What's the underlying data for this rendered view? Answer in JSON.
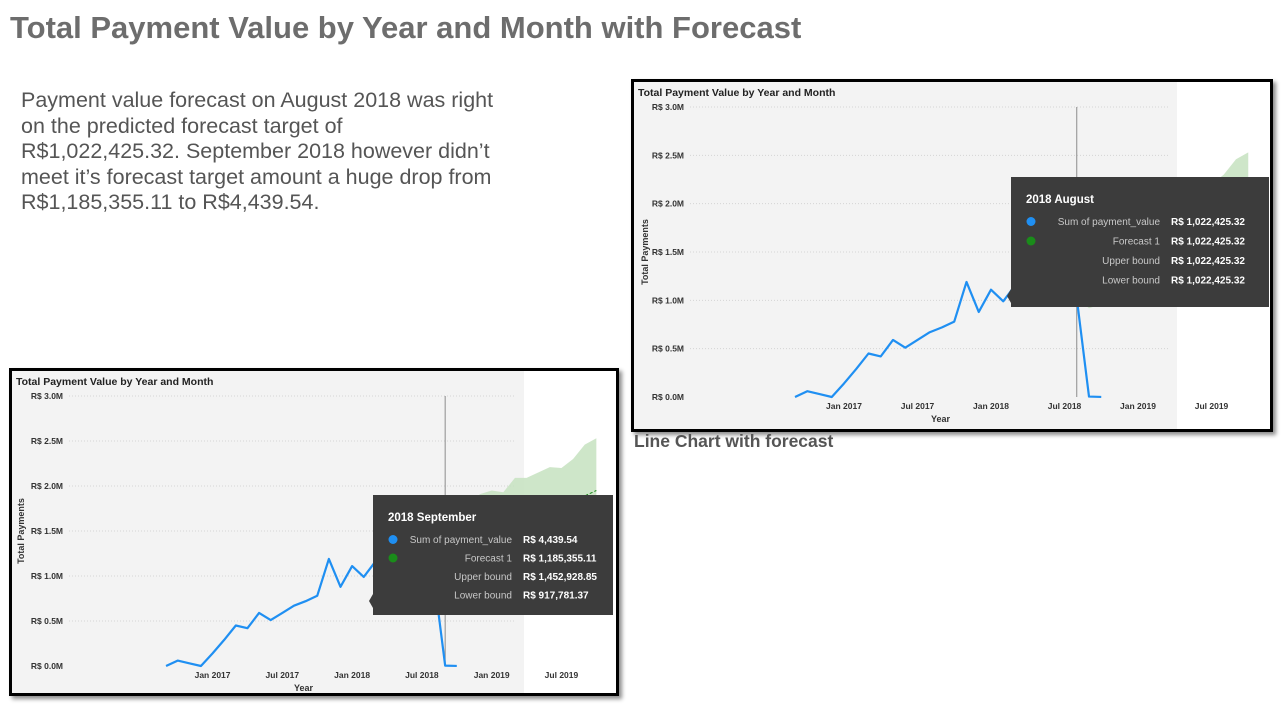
{
  "slide": {
    "title": "Total Payment Value by Year and Month with Forecast",
    "body_text": "Payment value forecast on August 2018 was right on the predicted forecast target of R$1,022,425.32. September 2018 however didn’t meet it’s forecast target amount a huge drop from R$1,185,355.11 to R$4,439.54.",
    "caption": "Line Chart with forecast"
  },
  "chart_data": [
    {
      "type": "line",
      "title": "Total Payment Value by Year and Month",
      "xlabel": "Year",
      "ylabel": "Total Payments",
      "x_tick_labels": [
        "Jan 2017",
        "Jul 2017",
        "Jan 2018",
        "Jul 2018",
        "Jan 2019",
        "Jul 2019"
      ],
      "y_tick_labels": [
        "R$ 0.0M",
        "R$ 0.5M",
        "R$ 1.0M",
        "R$ 1.5M",
        "R$ 2.0M",
        "R$ 2.5M",
        "R$ 3.0M"
      ],
      "ylim": [
        0,
        3000000
      ],
      "grid": true,
      "colors": {
        "actual": "#1f8ff2",
        "forecast": "#1a8c1a",
        "band": "#c6e2c0",
        "plot_bg": "#f3f3f3",
        "tooltip_bg": "#3c3c3c"
      },
      "series": [
        {
          "name": "Sum of payment_value",
          "x": [
            "2016-09",
            "2016-10",
            "2016-11",
            "2016-12",
            "2017-01",
            "2017-02",
            "2017-03",
            "2017-04",
            "2017-05",
            "2017-06",
            "2017-07",
            "2017-08",
            "2017-09",
            "2017-10",
            "2017-11",
            "2017-12",
            "2018-01",
            "2018-02",
            "2018-03",
            "2018-04",
            "2018-05",
            "2018-06",
            "2018-07",
            "2018-08",
            "2018-09",
            "2018-10"
          ],
          "values": [
            0,
            60000,
            30000,
            0,
            140000,
            290000,
            450000,
            420000,
            590000,
            510000,
            590000,
            670000,
            720000,
            780000,
            1190000,
            880000,
            1110000,
            990000,
            1160000,
            1160000,
            1150000,
            1020000,
            1060000,
            1022425.32,
            4439.54,
            600
          ]
        },
        {
          "name": "Forecast 1",
          "x": [
            "2018-08",
            "2018-09",
            "2018-10",
            "2018-11",
            "2018-12",
            "2019-01",
            "2019-02",
            "2019-03",
            "2019-04",
            "2019-05",
            "2019-06",
            "2019-07",
            "2019-08",
            "2019-09",
            "2019-10"
          ],
          "values": [
            1022425.32,
            1185355.11,
            1280000,
            1480000,
            1560000,
            1620000,
            1610000,
            1700000,
            1760000,
            1760000,
            1800000,
            1820000,
            1860000,
            1890000,
            1950000
          ],
          "upper": [
            1022425.32,
            1452928.85,
            1560000,
            1800000,
            1910000,
            1950000,
            1930000,
            2090000,
            2090000,
            2150000,
            2210000,
            2200000,
            2300000,
            2460000,
            2530000
          ],
          "lower": [
            1022425.32,
            917781.37,
            960000,
            1150000,
            1200000,
            1290000,
            1300000,
            1310000,
            1430000,
            1420000,
            1400000,
            1440000,
            1430000,
            1340000,
            1370000
          ]
        }
      ],
      "panels": [
        {
          "id": "right",
          "tooltip": {
            "title": "2018 August",
            "rows": [
              {
                "label": "Sum of payment_value",
                "value": "R$ 1,022,425.32",
                "marker": "blue"
              },
              {
                "label": "Forecast 1",
                "value": "R$ 1,022,425.32",
                "marker": "green"
              },
              {
                "label": "Upper bound",
                "value": "R$ 1,022,425.32"
              },
              {
                "label": "Lower bound",
                "value": "R$ 1,022,425.32"
              }
            ]
          }
        },
        {
          "id": "left",
          "tooltip": {
            "title": "2018 September",
            "rows": [
              {
                "label": "Sum of payment_value",
                "value": "R$ 4,439.54",
                "marker": "blue"
              },
              {
                "label": "Forecast 1",
                "value": "R$ 1,185,355.11",
                "marker": "green"
              },
              {
                "label": "Upper bound",
                "value": "R$ 1,452,928.85"
              },
              {
                "label": "Lower bound",
                "value": "R$ 917,781.37"
              }
            ]
          }
        }
      ]
    }
  ]
}
